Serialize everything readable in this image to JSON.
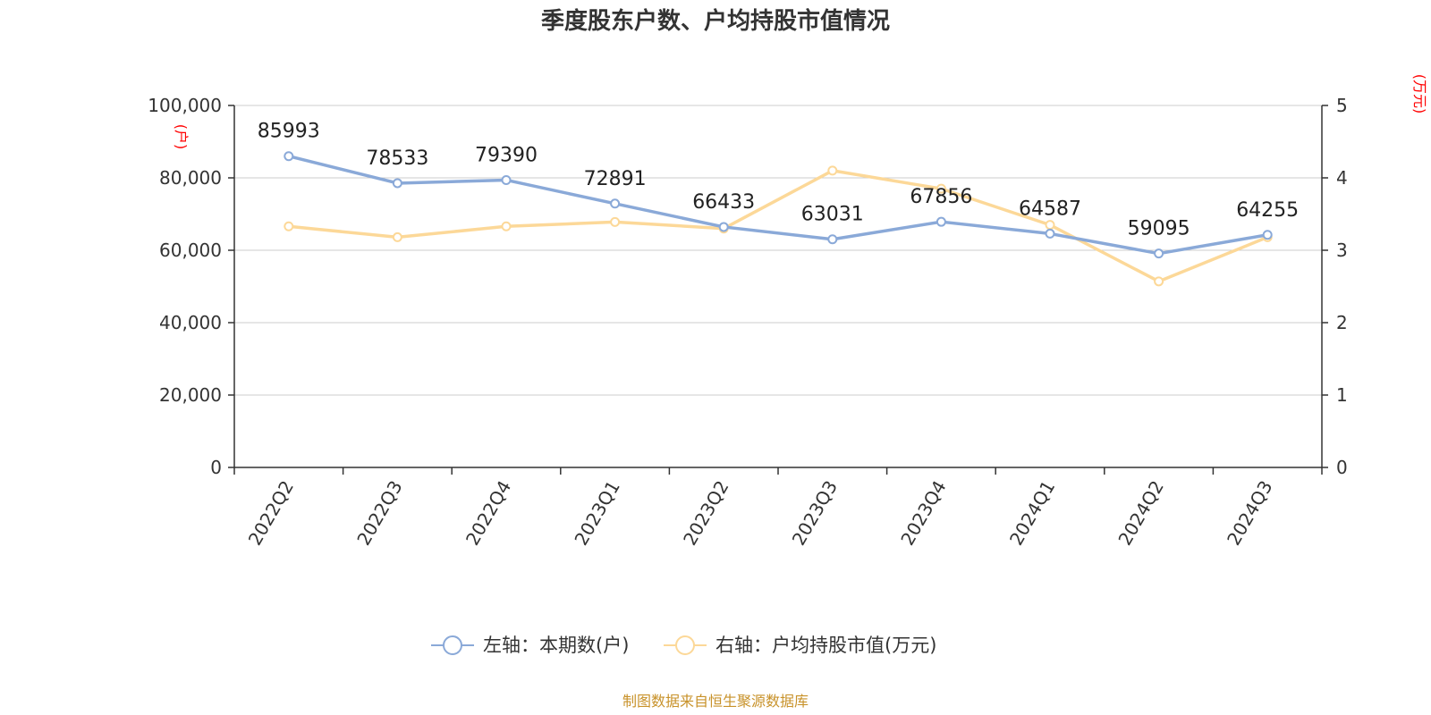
{
  "chart_data": {
    "type": "line",
    "title": "季度股东户数、户均持股市值情况",
    "categories": [
      "2022Q2",
      "2022Q3",
      "2022Q4",
      "2023Q1",
      "2023Q2",
      "2023Q3",
      "2023Q4",
      "2024Q1",
      "2024Q2",
      "2024Q3"
    ],
    "left_axis": {
      "unit": "(户)",
      "ylim": [
        0,
        100000
      ],
      "ticks": [
        "0",
        "20,000",
        "40,000",
        "60,000",
        "80,000",
        "100,000"
      ]
    },
    "right_axis": {
      "unit": "(万元)",
      "ylim": [
        0,
        5
      ],
      "ticks": [
        "0",
        "1",
        "2",
        "3",
        "4",
        "5"
      ]
    },
    "series": [
      {
        "name": "左轴：本期数(户)",
        "axis": "left",
        "color": "#8aa9d8",
        "values": [
          85993,
          78533,
          79390,
          72891,
          66433,
          63031,
          67856,
          64587,
          59095,
          64255
        ],
        "labels": [
          "85993",
          "78533",
          "79390",
          "72891",
          "66433",
          "63031",
          "67856",
          "64587",
          "59095",
          "64255"
        ]
      },
      {
        "name": "右轴：户均持股市值(万元)",
        "axis": "right",
        "color": "#fcd898",
        "values": [
          3.33,
          3.18,
          3.33,
          3.39,
          3.3,
          4.1,
          3.85,
          3.35,
          2.57,
          3.18
        ]
      }
    ],
    "grid": true,
    "legend_position": "bottom-center"
  },
  "source": "制图数据来自恒生聚源数据库"
}
